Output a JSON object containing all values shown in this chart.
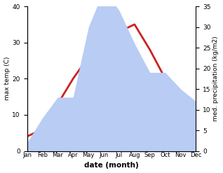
{
  "months": [
    "Jan",
    "Feb",
    "Mar",
    "Apr",
    "May",
    "Jun",
    "Jul",
    "Aug",
    "Sep",
    "Oct",
    "Nov",
    "Dec"
  ],
  "temperature": [
    4,
    6,
    13,
    20,
    26,
    30,
    33,
    35,
    28,
    20,
    12,
    6
  ],
  "precipitation": [
    2,
    8,
    13,
    13,
    30,
    39,
    34,
    26,
    19,
    19,
    15,
    12
  ],
  "temp_color": "#cc2222",
  "precip_color_fill": "#b8ccf4",
  "left_ylim": [
    0,
    40
  ],
  "right_ylim": [
    0,
    35
  ],
  "left_ylabel": "max temp (C)",
  "right_ylabel": "med. precipitation (kg/m2)",
  "xlabel": "date (month)",
  "left_yticks": [
    0,
    10,
    20,
    30,
    40
  ],
  "right_yticks": [
    0,
    5,
    10,
    15,
    20,
    25,
    30,
    35
  ],
  "figsize": [
    3.18,
    2.47
  ],
  "dpi": 100
}
